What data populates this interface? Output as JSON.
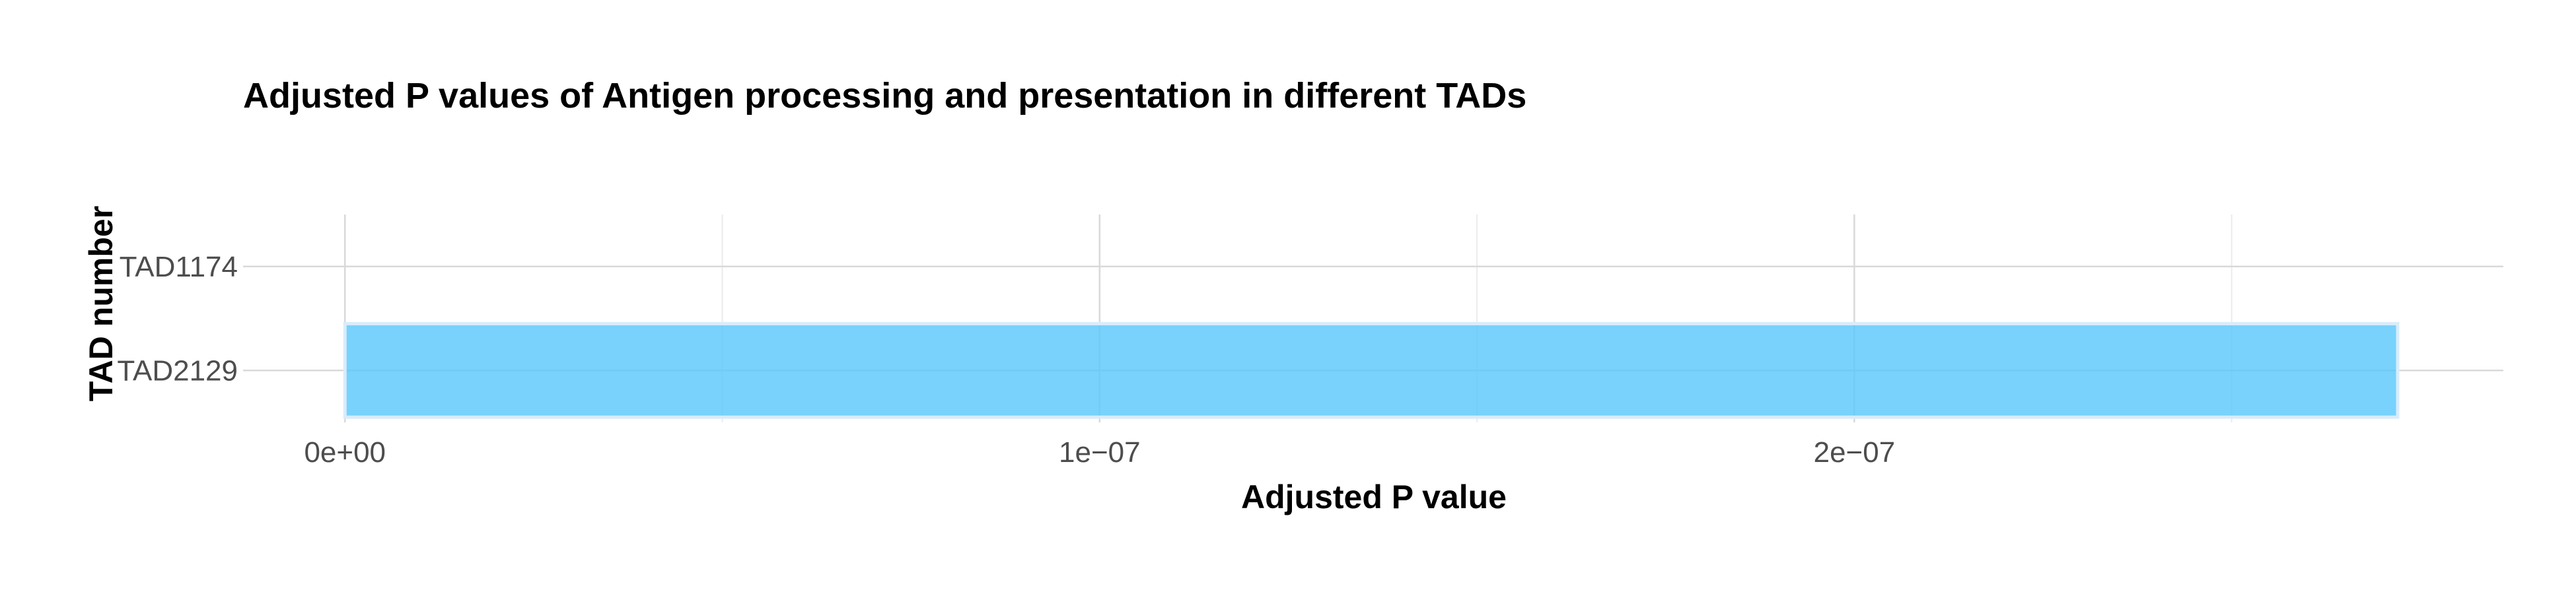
{
  "chart_data": {
    "type": "bar",
    "orientation": "horizontal",
    "title": "Adjusted P values of Antigen processing and presentation in different TADs",
    "xlabel": "Adjusted P value",
    "ylabel": "TAD number",
    "categories": [
      "TAD1174",
      "TAD2129"
    ],
    "values": [
      null,
      2.72e-07
    ],
    "xlim": [
      -1.35e-08,
      2.86e-07
    ],
    "xticks": [
      {
        "value": 0,
        "label": "0e+00"
      },
      {
        "value": 1e-07,
        "label": "1e−07"
      },
      {
        "value": 2e-07,
        "label": "2e−07"
      }
    ],
    "minor_xticks": [
      5e-08,
      1.5e-07,
      2.5e-07
    ],
    "grid": true,
    "bar_color": "#5AC8FA",
    "bar_edge_color": "#d9ecfb",
    "legend": "none"
  }
}
